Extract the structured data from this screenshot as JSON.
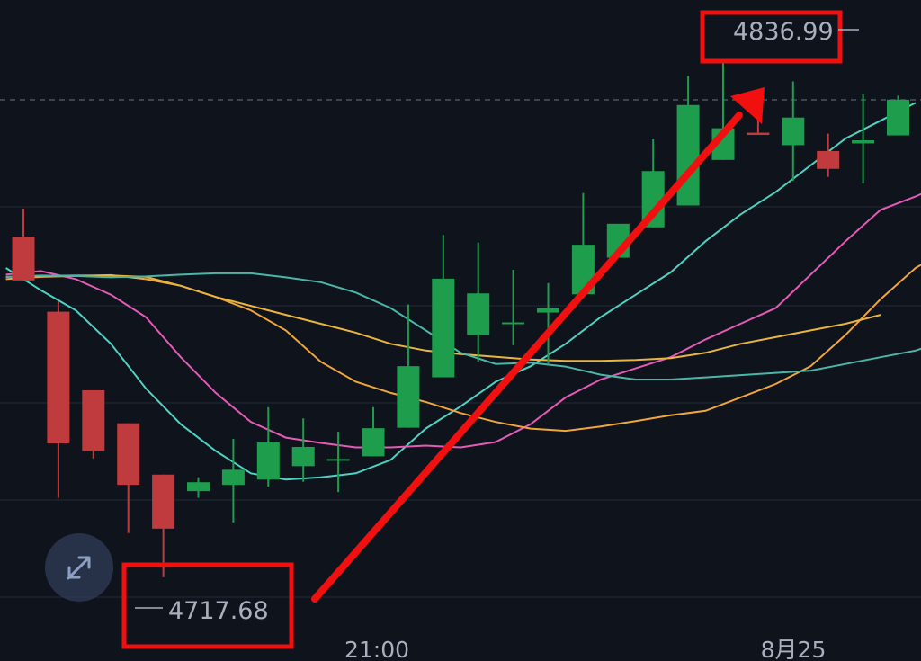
{
  "chart_data": {
    "type": "candlestick",
    "x_ticks": [
      "21:00",
      "8月25"
    ],
    "annotations": {
      "high": "4836.99",
      "low": "4717.68"
    },
    "ylim": [
      4706,
      4843
    ],
    "colors": {
      "background": "#0f131c",
      "up": "#1e9d4d",
      "down": "#c03b3d",
      "annotation": "#f01010",
      "ma_cyan": "#4fd1c1",
      "ma_pink": "#e35bb6",
      "ma_orange": "#f0a63a",
      "ma_yellow": "#e8b540",
      "ma_teal": "#49b6a8"
    },
    "candles": [
      {
        "o": 4794.0,
        "h": 4800.3,
        "l": 4784.0,
        "c": 4784.2
      },
      {
        "o": 4777.2,
        "h": 4779.5,
        "l": 4735.5,
        "c": 4747.7
      },
      {
        "o": 4759.6,
        "h": 4759.6,
        "l": 4744.3,
        "c": 4746.0
      },
      {
        "o": 4752.2,
        "h": 4752.2,
        "l": 4727.6,
        "c": 4738.4
      },
      {
        "o": 4740.7,
        "h": 4740.7,
        "l": 4717.7,
        "c": 4728.6
      },
      {
        "o": 4737.0,
        "h": 4740.1,
        "l": 4735.5,
        "c": 4739.0
      },
      {
        "o": 4738.4,
        "h": 4748.7,
        "l": 4730.0,
        "c": 4741.8
      },
      {
        "o": 4739.6,
        "h": 4755.8,
        "l": 4738.0,
        "c": 4747.9
      },
      {
        "o": 4742.6,
        "h": 4753.3,
        "l": 4739.1,
        "c": 4746.9
      },
      {
        "o": 4744.2,
        "h": 4750.3,
        "l": 4736.8,
        "c": 4744.2
      },
      {
        "o": 4744.8,
        "h": 4755.8,
        "l": 4744.8,
        "c": 4751.1
      },
      {
        "o": 4751.2,
        "h": 4778.8,
        "l": 4751.2,
        "c": 4765.0
      },
      {
        "o": 4762.5,
        "h": 4794.4,
        "l": 4762.5,
        "c": 4784.6
      },
      {
        "o": 4772.0,
        "h": 4792.7,
        "l": 4766.0,
        "c": 4781.3
      },
      {
        "o": 4774.8,
        "h": 4786.6,
        "l": 4769.7,
        "c": 4774.8
      },
      {
        "o": 4777.0,
        "h": 4783.6,
        "l": 4765.6,
        "c": 4778.0
      },
      {
        "o": 4781.1,
        "h": 4803.8,
        "l": 4781.1,
        "c": 4792.2
      },
      {
        "o": 4789.3,
        "h": 4795.7,
        "l": 4789.3,
        "c": 4796.9
      },
      {
        "o": 4796.1,
        "h": 4815.8,
        "l": 4796.1,
        "c": 4808.7
      },
      {
        "o": 4801.0,
        "h": 4830.0,
        "l": 4801.0,
        "c": 4823.5
      },
      {
        "o": 4811.2,
        "h": 4833.2,
        "l": 4811.2,
        "c": 4818.3
      },
      {
        "o": 4817.3,
        "h": 4820.1,
        "l": 4817.3,
        "c": 4816.8
      },
      {
        "o": 4814.5,
        "h": 4828.8,
        "l": 4806.5,
        "c": 4820.7
      },
      {
        "o": 4813.2,
        "h": 4817.1,
        "l": 4807.4,
        "c": 4809.2
      },
      {
        "o": 4814.9,
        "h": 4826.0,
        "l": 4805.9,
        "c": 4815.6
      },
      {
        "o": 4816.7,
        "h": 4825.6,
        "l": 4816.7,
        "c": 4824.7
      },
      {
        "o": 4820.6,
        "h": 4837.0,
        "l": 4819.0,
        "c": 4827.6
      }
    ],
    "moving_averages": [
      {
        "color_key": "ma_cyan",
        "points": [
          [
            -0.5,
            4787.0
          ],
          [
            0.5,
            4782.0
          ],
          [
            1.5,
            4777.5
          ],
          [
            2.5,
            4770.0
          ],
          [
            3.5,
            4760.0
          ],
          [
            4.5,
            4752.0
          ],
          [
            5.5,
            4746.0
          ],
          [
            6.5,
            4741.0
          ],
          [
            7.5,
            4739.6
          ],
          [
            8.5,
            4740.1
          ],
          [
            9.5,
            4741.0
          ],
          [
            10.5,
            4744.0
          ],
          [
            11.5,
            4751.0
          ],
          [
            12.5,
            4756.0
          ],
          [
            13.5,
            4761.5
          ],
          [
            14.5,
            4765.0
          ],
          [
            15.5,
            4770.0
          ],
          [
            16.5,
            4776.0
          ],
          [
            17.5,
            4781.0
          ],
          [
            18.5,
            4786.0
          ],
          [
            19.5,
            4793.0
          ],
          [
            20.5,
            4799.0
          ],
          [
            21.5,
            4804.0
          ],
          [
            22.5,
            4810.0
          ],
          [
            23.5,
            4816.0
          ],
          [
            24.5,
            4820.0
          ],
          [
            25.5,
            4824.0
          ]
        ]
      },
      {
        "color_key": "ma_pink",
        "points": [
          [
            -0.5,
            4785.5
          ],
          [
            0.5,
            4786.3
          ],
          [
            1.5,
            4784.5
          ],
          [
            2.5,
            4781.0
          ],
          [
            3.5,
            4776.0
          ],
          [
            4.5,
            4767.0
          ],
          [
            5.5,
            4759.0
          ],
          [
            6.5,
            4752.5
          ],
          [
            7.5,
            4749.0
          ],
          [
            8.5,
            4747.8
          ],
          [
            9.5,
            4746.8
          ],
          [
            10.5,
            4746.8
          ],
          [
            11.5,
            4747.2
          ],
          [
            12.5,
            4746.8
          ],
          [
            13.5,
            4748.0
          ],
          [
            14.5,
            4752.0
          ],
          [
            15.5,
            4758.0
          ],
          [
            16.5,
            4762.0
          ],
          [
            17.5,
            4764.5
          ],
          [
            18.5,
            4767.0
          ],
          [
            19.5,
            4771.0
          ],
          [
            20.5,
            4774.5
          ],
          [
            21.5,
            4778.0
          ],
          [
            22.5,
            4785.5
          ],
          [
            23.5,
            4793.0
          ],
          [
            24.5,
            4800.0
          ],
          [
            25.5,
            4803.0
          ],
          [
            26.5,
            4806.5
          ]
        ]
      },
      {
        "color_key": "ma_orange",
        "points": [
          [
            -0.5,
            4784.5
          ],
          [
            0.5,
            4785.0
          ],
          [
            1.5,
            4785.2
          ],
          [
            2.5,
            4785.4
          ],
          [
            3.5,
            4784.5
          ],
          [
            4.5,
            4783.0
          ],
          [
            5.5,
            4780.5
          ],
          [
            6.5,
            4777.5
          ],
          [
            7.5,
            4773.0
          ],
          [
            8.5,
            4766.0
          ],
          [
            9.5,
            4761.5
          ],
          [
            10.5,
            4759.0
          ],
          [
            11.5,
            4757.0
          ],
          [
            12.5,
            4754.5
          ],
          [
            13.5,
            4752.5
          ],
          [
            14.5,
            4751.0
          ],
          [
            15.5,
            4750.5
          ],
          [
            16.5,
            4751.5
          ],
          [
            17.5,
            4752.7
          ],
          [
            18.5,
            4754.0
          ],
          [
            19.5,
            4755.0
          ],
          [
            20.5,
            4758.0
          ],
          [
            21.5,
            4761.0
          ],
          [
            22.5,
            4765.0
          ],
          [
            23.5,
            4772.0
          ],
          [
            24.5,
            4780.0
          ],
          [
            25.5,
            4787.0
          ],
          [
            26.5,
            4791.5
          ]
        ]
      },
      {
        "color_key": "ma_yellow",
        "points": [
          [
            -0.5,
            4785.0
          ],
          [
            0.5,
            4785.2
          ],
          [
            1.5,
            4785.3
          ],
          [
            2.5,
            4785.3
          ],
          [
            3.5,
            4785.0
          ],
          [
            4.5,
            4783.0
          ],
          [
            5.5,
            4780.5
          ],
          [
            6.5,
            4778.5
          ],
          [
            7.5,
            4776.5
          ],
          [
            8.5,
            4774.5
          ],
          [
            9.5,
            4772.5
          ],
          [
            10.5,
            4770.0
          ],
          [
            11.5,
            4768.5
          ],
          [
            12.5,
            4767.7
          ],
          [
            13.5,
            4767.1
          ],
          [
            14.5,
            4766.5
          ],
          [
            15.5,
            4766.2
          ],
          [
            16.5,
            4766.2
          ],
          [
            17.5,
            4766.4
          ],
          [
            18.5,
            4766.8
          ],
          [
            19.5,
            4768.0
          ],
          [
            20.5,
            4770.0
          ],
          [
            21.5,
            4771.5
          ],
          [
            22.5,
            4773.0
          ],
          [
            23.5,
            4774.5
          ],
          [
            24.5,
            4776.5
          ]
        ]
      },
      {
        "color_key": "ma_teal",
        "points": [
          [
            -0.5,
            4785.0
          ],
          [
            0.5,
            4785.3
          ],
          [
            1.5,
            4785.2
          ],
          [
            2.5,
            4784.9
          ],
          [
            3.5,
            4785.1
          ],
          [
            4.5,
            4785.5
          ],
          [
            5.5,
            4785.8
          ],
          [
            6.5,
            4785.8
          ],
          [
            7.5,
            4784.9
          ],
          [
            8.5,
            4783.8
          ],
          [
            9.5,
            4781.5
          ],
          [
            10.5,
            4778.0
          ],
          [
            11.5,
            4773.0
          ],
          [
            12.5,
            4768.0
          ],
          [
            13.5,
            4765.5
          ],
          [
            14.5,
            4765.8
          ],
          [
            15.5,
            4764.9
          ],
          [
            16.5,
            4763.1
          ],
          [
            17.5,
            4762.0
          ],
          [
            18.5,
            4762.0
          ],
          [
            19.5,
            4762.5
          ],
          [
            20.5,
            4763.0
          ],
          [
            21.5,
            4763.5
          ],
          [
            22.5,
            4764.0
          ],
          [
            23.5,
            4765.5
          ],
          [
            24.5,
            4767.0
          ],
          [
            25.5,
            4768.5
          ],
          [
            26.5,
            4771.0
          ]
        ]
      }
    ]
  }
}
